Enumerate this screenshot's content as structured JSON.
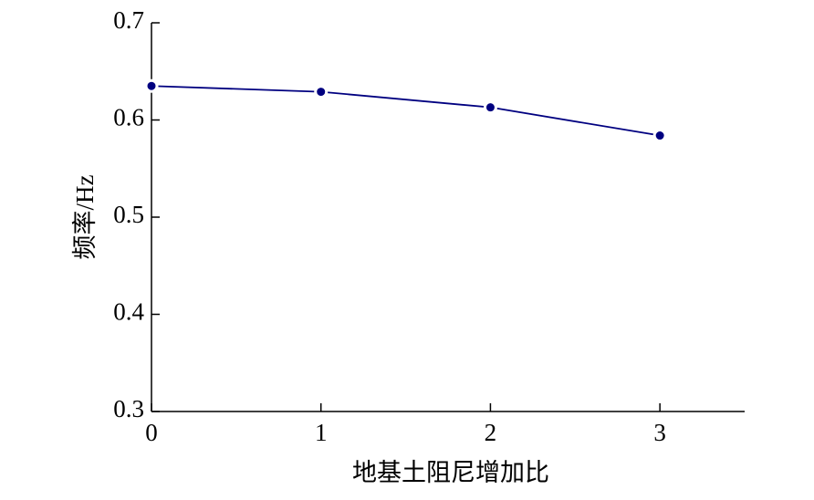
{
  "chart_data": {
    "type": "line",
    "xlabel": "地基土阻尼增加比",
    "ylabel": "频率/Hz",
    "x": [
      0,
      1,
      2,
      3
    ],
    "series": [
      {
        "name": "频率",
        "color": "#000080",
        "values": [
          0.635,
          0.629,
          0.613,
          0.584
        ]
      }
    ],
    "xlim": [
      0,
      3.5
    ],
    "xticks": [
      0,
      1,
      2,
      3
    ],
    "ylim": [
      0.3,
      0.7
    ],
    "yticks": [
      0.3,
      0.4,
      0.5,
      0.6,
      0.7
    ],
    "grid": false
  }
}
